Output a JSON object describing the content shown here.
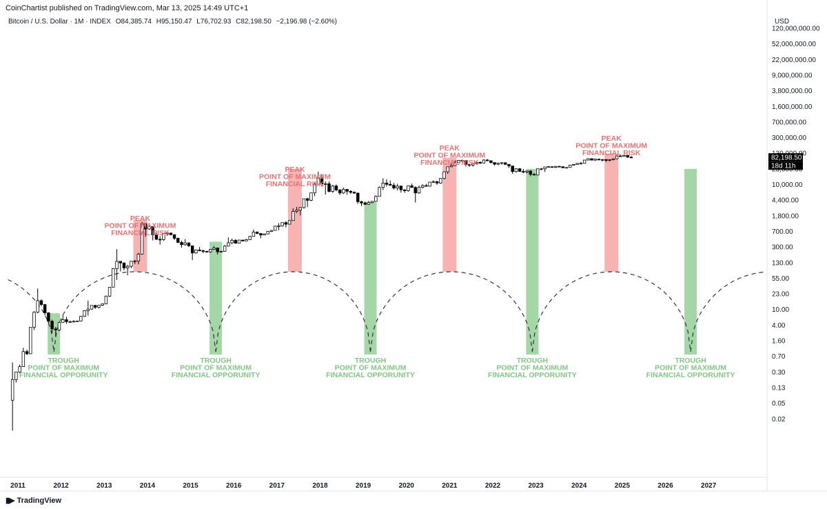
{
  "header": {
    "published": "CoinChartist published on TradingView.com, Mar 13, 2025 14:49 UTC+1",
    "symbol": "Bitcoin / U.S. Dollar · 1M · INDEX",
    "open": "O84,385.74",
    "high": "H95,150.47",
    "low": "L76,702.93",
    "close": "C82,198.50",
    "change": "−2,196.98 (−2.60%)"
  },
  "footer": {
    "brand": "TradingView",
    "logo_icon": "tradingview-logo-icon"
  },
  "colors": {
    "peak_zone": "#f7b2b2",
    "peak_text": "#e57373",
    "trough_zone": "#a5d6a7",
    "trough_text": "#81c784",
    "candle_up": "#ffffff",
    "candle_down": "#000000",
    "cycle_line": "#333333"
  },
  "chart_data": {
    "type": "candlestick",
    "y_scale": "log",
    "y_unit": "USD",
    "y_tick_labels": [
      "120,000,000.00",
      "52,000,000.00",
      "22,000,000.00",
      "9,000,000.00",
      "3,800,000.00",
      "1,600,000.00",
      "700,000.00",
      "300,000.00",
      "130,000.00",
      "23,000.00",
      "10,000.00",
      "4,400.00",
      "1,800.00",
      "700.00",
      "300.00",
      "130.00",
      "55.00",
      "23.00",
      "10.00",
      "4.00",
      "1.60",
      "0.70",
      "0.30",
      "0.13",
      "0.05",
      "0.02"
    ],
    "x_tick_labels": [
      "2011",
      "2012",
      "2013",
      "2014",
      "2015",
      "2016",
      "2017",
      "2018",
      "2019",
      "2020",
      "2021",
      "2022",
      "2023",
      "2024",
      "2025",
      "2026",
      "2027"
    ],
    "last_price_label": "82,198.50",
    "countdown_label": "18d 11h",
    "peaks": [
      {
        "title": "PEAK",
        "line1": "POINT OF MAXIMUM",
        "line2": "FINANCIAL RISK",
        "date": "2013-11"
      },
      {
        "title": "PEAK",
        "line1": "POINT OF MAXIMUM",
        "line2": "FINANCIAL RISK",
        "date": "2017-06"
      },
      {
        "title": "PEAK",
        "line1": "POINT OF MAXIMUM",
        "line2": "FINANCIAL RISK",
        "date": "2021-01"
      },
      {
        "title": "PEAK",
        "line1": "POINT OF MAXIMUM",
        "line2": "FINANCIAL RISK",
        "date": "2024-10"
      }
    ],
    "troughs": [
      {
        "title": "TROUGH",
        "line1": "POINT OF MAXIMUM",
        "line2": "FINANCIAL OPPORUNITY",
        "date": "2011-11"
      },
      {
        "title": "TROUGH",
        "line1": "POINT OF MAXIMUM",
        "line2": "FINANCIAL OPPORUNITY",
        "date": "2015-08"
      },
      {
        "title": "TROUGH",
        "line1": "POINT OF MAXIMUM",
        "line2": "FINANCIAL OPPORUNITY",
        "date": "2019-03"
      },
      {
        "title": "TROUGH",
        "line1": "POINT OF MAXIMUM",
        "line2": "FINANCIAL OPPORUNITY",
        "date": "2022-12"
      },
      {
        "title": "TROUGH",
        "line1": "POINT OF MAXIMUM",
        "line2": "FINANCIAL OPPORUNITY",
        "date": "2026-08"
      }
    ],
    "candles": [
      [
        "2010-11",
        0.06,
        0.5,
        0.01,
        0.2
      ],
      [
        "2010-12",
        0.2,
        0.3,
        0.17,
        0.3
      ],
      [
        "2011-01",
        0.3,
        0.45,
        0.28,
        0.4
      ],
      [
        "2011-02",
        0.4,
        1.1,
        0.4,
        0.9
      ],
      [
        "2011-03",
        0.9,
        1.0,
        0.75,
        0.8
      ],
      [
        "2011-04",
        0.8,
        3.5,
        0.8,
        3.5
      ],
      [
        "2011-05",
        3.5,
        9.0,
        3.0,
        8.5
      ],
      [
        "2011-06",
        8.5,
        31,
        8.0,
        16
      ],
      [
        "2011-07",
        16,
        17,
        12,
        13
      ],
      [
        "2011-08",
        13,
        13.5,
        7,
        8.2
      ],
      [
        "2011-09",
        8.2,
        8.5,
        4.5,
        5
      ],
      [
        "2011-10",
        5,
        5.5,
        2.5,
        3.2
      ],
      [
        "2011-11",
        3.2,
        3.6,
        2,
        3
      ],
      [
        "2011-12",
        3,
        4.8,
        2.8,
        4.7
      ],
      [
        "2012-01",
        4.7,
        7.2,
        4.6,
        5.5
      ],
      [
        "2012-02",
        5.5,
        6.5,
        4.3,
        4.9
      ],
      [
        "2012-03",
        4.9,
        5.2,
        4.6,
        4.9
      ],
      [
        "2012-04",
        4.9,
        5.3,
        4.7,
        5.0
      ],
      [
        "2012-05",
        5.0,
        5.2,
        4.9,
        5.1
      ],
      [
        "2012-06",
        5.1,
        6.8,
        5.0,
        6.7
      ],
      [
        "2012-07",
        6.7,
        9.5,
        6.5,
        9.3
      ],
      [
        "2012-08",
        9.3,
        16,
        7.0,
        10.2
      ],
      [
        "2012-09",
        10.2,
        12.5,
        9.8,
        12.4
      ],
      [
        "2012-10",
        12.4,
        12.8,
        10.3,
        11.2
      ],
      [
        "2012-11",
        11.2,
        12.7,
        10.5,
        12.5
      ],
      [
        "2012-12",
        12.5,
        13.7,
        12.0,
        13.5
      ],
      [
        "2013-01",
        13.5,
        21,
        13.2,
        20.4
      ],
      [
        "2013-02",
        20.4,
        33,
        19.5,
        33.4
      ],
      [
        "2013-03",
        33.4,
        95,
        33,
        93
      ],
      [
        "2013-04",
        93,
        266,
        50,
        139
      ],
      [
        "2013-05",
        139,
        140,
        80,
        128
      ],
      [
        "2013-06",
        128,
        130,
        85,
        97
      ],
      [
        "2013-07",
        97,
        115,
        65,
        106
      ],
      [
        "2013-08",
        106,
        140,
        95,
        140
      ],
      [
        "2013-09",
        140,
        150,
        120,
        141
      ],
      [
        "2013-10",
        141,
        220,
        118,
        205
      ],
      [
        "2013-11",
        205,
        1240,
        200,
        1130
      ],
      [
        "2013-12",
        1130,
        1160,
        520,
        805
      ],
      [
        "2014-01",
        805,
        1000,
        770,
        940
      ],
      [
        "2014-02",
        940,
        950,
        430,
        580
      ],
      [
        "2014-03",
        580,
        700,
        440,
        455
      ],
      [
        "2014-04",
        455,
        540,
        340,
        445
      ],
      [
        "2014-05",
        445,
        630,
        420,
        630
      ],
      [
        "2014-06",
        630,
        670,
        550,
        640
      ],
      [
        "2014-07",
        640,
        650,
        565,
        585
      ],
      [
        "2014-08",
        585,
        600,
        440,
        480
      ],
      [
        "2014-09",
        480,
        500,
        370,
        385
      ],
      [
        "2014-10",
        385,
        420,
        290,
        340
      ],
      [
        "2014-11",
        340,
        460,
        320,
        375
      ],
      [
        "2014-12",
        375,
        385,
        300,
        320
      ],
      [
        "2015-01",
        320,
        320,
        150,
        218
      ],
      [
        "2015-02",
        218,
        262,
        210,
        255
      ],
      [
        "2015-03",
        255,
        300,
        240,
        245
      ],
      [
        "2015-04",
        245,
        260,
        215,
        237
      ],
      [
        "2015-05",
        237,
        245,
        225,
        230
      ],
      [
        "2015-06",
        230,
        265,
        220,
        264
      ],
      [
        "2015-07",
        264,
        315,
        255,
        285
      ],
      [
        "2015-08",
        285,
        285,
        200,
        231
      ],
      [
        "2015-09",
        231,
        245,
        225,
        237
      ],
      [
        "2015-10",
        237,
        335,
        235,
        314
      ],
      [
        "2015-11",
        314,
        505,
        310,
        377
      ],
      [
        "2015-12",
        377,
        470,
        350,
        430
      ],
      [
        "2016-01",
        430,
        460,
        360,
        368
      ],
      [
        "2016-02",
        368,
        440,
        365,
        437
      ],
      [
        "2016-03",
        437,
        440,
        405,
        416
      ],
      [
        "2016-04",
        416,
        465,
        415,
        448
      ],
      [
        "2016-05",
        448,
        550,
        440,
        531
      ],
      [
        "2016-06",
        531,
        780,
        530,
        673
      ],
      [
        "2016-07",
        673,
        700,
        605,
        624
      ],
      [
        "2016-08",
        624,
        630,
        480,
        574
      ],
      [
        "2016-09",
        574,
        620,
        570,
        609
      ],
      [
        "2016-10",
        609,
        710,
        605,
        700
      ],
      [
        "2016-11",
        700,
        755,
        680,
        742
      ],
      [
        "2016-12",
        742,
        970,
        740,
        963
      ],
      [
        "2017-01",
        963,
        1150,
        750,
        970
      ],
      [
        "2017-02",
        970,
        1200,
        935,
        1190
      ],
      [
        "2017-03",
        1190,
        1290,
        890,
        1080
      ],
      [
        "2017-04",
        1080,
        1370,
        1075,
        1350
      ],
      [
        "2017-05",
        1350,
        2760,
        1350,
        2300
      ],
      [
        "2017-06",
        2300,
        3000,
        2100,
        2480
      ],
      [
        "2017-07",
        2480,
        2950,
        1840,
        2875
      ],
      [
        "2017-08",
        2875,
        4760,
        2700,
        4740
      ],
      [
        "2017-09",
        4740,
        5000,
        2950,
        4340
      ],
      [
        "2017-10",
        4340,
        6470,
        4160,
        6440
      ],
      [
        "2017-11",
        6440,
        11500,
        5400,
        10200
      ],
      [
        "2017-12",
        10200,
        19800,
        10100,
        14150
      ],
      [
        "2018-01",
        14150,
        17300,
        9000,
        10250
      ],
      [
        "2018-02",
        10250,
        11800,
        5900,
        10400
      ],
      [
        "2018-03",
        10400,
        11700,
        6600,
        6950
      ],
      [
        "2018-04",
        6950,
        9800,
        6450,
        9250
      ],
      [
        "2018-05",
        9250,
        10000,
        7000,
        7500
      ],
      [
        "2018-06",
        7500,
        7800,
        5750,
        6400
      ],
      [
        "2018-07",
        6400,
        8500,
        6100,
        7750
      ],
      [
        "2018-08",
        7750,
        7800,
        5850,
        7000
      ],
      [
        "2018-09",
        7000,
        7400,
        6100,
        6625
      ],
      [
        "2018-10",
        6625,
        7000,
        6150,
        6350
      ],
      [
        "2018-11",
        6350,
        6550,
        3550,
        4020
      ],
      [
        "2018-12",
        4020,
        4250,
        3150,
        3740
      ],
      [
        "2019-01",
        3740,
        4050,
        3350,
        3460
      ],
      [
        "2019-02",
        3460,
        4200,
        3360,
        3820
      ],
      [
        "2019-03",
        3820,
        4130,
        3700,
        4100
      ],
      [
        "2019-04",
        4100,
        5650,
        4050,
        5350
      ],
      [
        "2019-05",
        5350,
        9000,
        5300,
        8550
      ],
      [
        "2019-06",
        8550,
        13900,
        7450,
        10820
      ],
      [
        "2019-07",
        10820,
        13200,
        9000,
        10080
      ],
      [
        "2019-08",
        10080,
        12300,
        9400,
        9590
      ],
      [
        "2019-09",
        9590,
        10900,
        7700,
        8290
      ],
      [
        "2019-10",
        8290,
        10400,
        7300,
        9200
      ],
      [
        "2019-11",
        9200,
        9500,
        6500,
        7550
      ],
      [
        "2019-12",
        7550,
        7750,
        6450,
        7190
      ],
      [
        "2020-01",
        7190,
        9550,
        6850,
        9350
      ],
      [
        "2020-02",
        9350,
        10500,
        8450,
        8550
      ],
      [
        "2020-03",
        8550,
        9150,
        3850,
        6420
      ],
      [
        "2020-04",
        6420,
        9450,
        6150,
        8630
      ],
      [
        "2020-05",
        8630,
        10100,
        8100,
        9450
      ],
      [
        "2020-06",
        9450,
        10400,
        8900,
        9140
      ],
      [
        "2020-07",
        9140,
        11450,
        8950,
        11350
      ],
      [
        "2020-08",
        11350,
        12500,
        11000,
        11650
      ],
      [
        "2020-09",
        11650,
        12100,
        9850,
        10780
      ],
      [
        "2020-10",
        10780,
        14100,
        10400,
        13800
      ],
      [
        "2020-11",
        13800,
        19900,
        13200,
        19700
      ],
      [
        "2020-12",
        19700,
        29300,
        17600,
        29000
      ],
      [
        "2021-01",
        29000,
        41950,
        28100,
        33100
      ],
      [
        "2021-02",
        33100,
        58350,
        32300,
        45200
      ],
      [
        "2021-03",
        45200,
        61800,
        44900,
        58800
      ],
      [
        "2021-04",
        58800,
        64900,
        47000,
        57700
      ],
      [
        "2021-05",
        57700,
        59500,
        30000,
        37300
      ],
      [
        "2021-06",
        37300,
        41300,
        28800,
        35000
      ],
      [
        "2021-07",
        35000,
        42400,
        29300,
        41500
      ],
      [
        "2021-08",
        41500,
        50500,
        37300,
        47100
      ],
      [
        "2021-09",
        47100,
        52900,
        39600,
        43800
      ],
      [
        "2021-10",
        43800,
        67000,
        43300,
        61300
      ],
      [
        "2021-11",
        61300,
        69000,
        53300,
        57000
      ],
      [
        "2021-12",
        57000,
        59000,
        42000,
        46300
      ],
      [
        "2022-01",
        46300,
        48000,
        32900,
        38500
      ],
      [
        "2022-02",
        38500,
        45800,
        34300,
        43200
      ],
      [
        "2022-03",
        43200,
        48200,
        37200,
        45500
      ],
      [
        "2022-04",
        45500,
        47400,
        37700,
        37700
      ],
      [
        "2022-05",
        37700,
        40000,
        25400,
        31800
      ],
      [
        "2022-06",
        31800,
        31900,
        17600,
        19900
      ],
      [
        "2022-07",
        19900,
        24600,
        18800,
        23300
      ],
      [
        "2022-08",
        23300,
        25200,
        19600,
        20050
      ],
      [
        "2022-09",
        20050,
        22800,
        18200,
        19400
      ],
      [
        "2022-10",
        19400,
        21100,
        18200,
        20500
      ],
      [
        "2022-11",
        20500,
        21400,
        15500,
        17150
      ],
      [
        "2022-12",
        17150,
        18400,
        16300,
        16550
      ],
      [
        "2023-01",
        16550,
        23950,
        16500,
        23130
      ],
      [
        "2023-02",
        23130,
        25250,
        21400,
        23150
      ],
      [
        "2023-03",
        23150,
        29200,
        19550,
        28480
      ],
      [
        "2023-04",
        28480,
        31000,
        26950,
        29250
      ],
      [
        "2023-05",
        29250,
        29850,
        25800,
        27200
      ],
      [
        "2023-06",
        27200,
        31400,
        24800,
        30480
      ],
      [
        "2023-07",
        30480,
        31800,
        28860,
        29230
      ],
      [
        "2023-08",
        29230,
        30250,
        25160,
        25940
      ],
      [
        "2023-09",
        25940,
        27480,
        24900,
        26970
      ],
      [
        "2023-10",
        26970,
        35200,
        26550,
        34650
      ],
      [
        "2023-11",
        34650,
        38450,
        34100,
        37720
      ],
      [
        "2023-12",
        37720,
        44700,
        37650,
        42280
      ],
      [
        "2024-01",
        42280,
        48970,
        38550,
        42580
      ],
      [
        "2024-02",
        42580,
        63900,
        41880,
        61130
      ],
      [
        "2024-03",
        61130,
        73800,
        59000,
        71330
      ],
      [
        "2024-04",
        71330,
        72800,
        59200,
        60640
      ],
      [
        "2024-05",
        60640,
        71950,
        56550,
        67490
      ],
      [
        "2024-06",
        67490,
        71960,
        58400,
        62680
      ],
      [
        "2024-07",
        62680,
        70000,
        53500,
        64630
      ],
      [
        "2024-08",
        64630,
        65600,
        49000,
        58970
      ],
      [
        "2024-09",
        58970,
        66500,
        52550,
        63330
      ],
      [
        "2024-10",
        63330,
        73600,
        58900,
        70220
      ],
      [
        "2024-11",
        70220,
        99800,
        66800,
        96450
      ],
      [
        "2024-12",
        96450,
        108300,
        90500,
        93430
      ],
      [
        "2025-01",
        93430,
        109500,
        89250,
        102400
      ],
      [
        "2025-02",
        102400,
        102500,
        78200,
        84385
      ],
      [
        "2025-03",
        84385.74,
        95150.47,
        76702.93,
        82198.5
      ]
    ]
  }
}
